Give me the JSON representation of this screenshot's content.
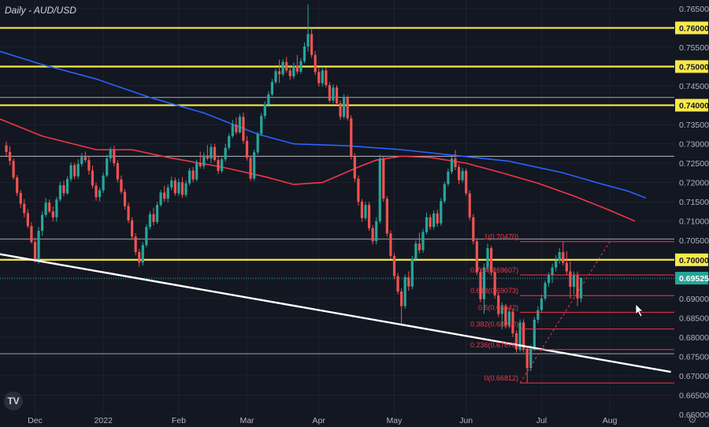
{
  "chart_data": {
    "type": "candlestick",
    "title": "Daily - AUD/USD",
    "logo_text": "TV",
    "colors": {
      "background": "#131722",
      "up": "#26a69a",
      "down": "#ef5350",
      "level": "#f7e94a",
      "ma_long": "#2962ff",
      "ma_short": "#f23645",
      "fib": "#f23645",
      "trendline": "#ffffff",
      "price_badge": "#26a69a"
    },
    "y_range": [
      0.66,
      0.766
    ],
    "y_ticks": [
      "0.76500",
      "0.76000",
      "0.75500",
      "0.75000",
      "0.74500",
      "0.74000",
      "0.73500",
      "0.73000",
      "0.72500",
      "0.72000",
      "0.71500",
      "0.71000",
      "0.70500",
      "0.70000",
      "0.69500",
      "0.69000",
      "0.68500",
      "0.68000",
      "0.67500",
      "0.67000",
      "0.66500",
      "0.66000"
    ],
    "x_labels": [
      {
        "label": "Dec",
        "bar": 8
      },
      {
        "label": "2022",
        "bar": 27
      },
      {
        "label": "Feb",
        "bar": 48
      },
      {
        "label": "Mar",
        "bar": 67
      },
      {
        "label": "Apr",
        "bar": 87
      },
      {
        "label": "May",
        "bar": 108
      },
      {
        "label": "Jun",
        "bar": 128
      },
      {
        "label": "Jul",
        "bar": 149
      },
      {
        "label": "Aug",
        "bar": 168
      }
    ],
    "yellow_levels": [
      {
        "price": 0.76,
        "label": "0.76000"
      },
      {
        "price": 0.75,
        "label": "0.75000"
      },
      {
        "price": 0.74,
        "label": "0.74000"
      },
      {
        "price": 0.7,
        "label": "0.70000"
      }
    ],
    "white_levels": [
      0.742,
      0.7268,
      0.7054,
      0.6757
    ],
    "current_price": {
      "price": 0.69525,
      "label": "0.69525"
    },
    "fib_levels": [
      {
        "ratio": "1",
        "price": 0.7047,
        "label": "1(0.70470)"
      },
      {
        "ratio": "0.764",
        "price": 0.69607,
        "label": "0.764(0.69607)"
      },
      {
        "ratio": "0.618",
        "price": 0.69073,
        "label": "0.618(0.69073)"
      },
      {
        "ratio": "0.5",
        "price": 0.68642,
        "label": "0.5(0.68642)"
      },
      {
        "ratio": "0.382",
        "price": 0.6821,
        "label": "0.382(0.68210)"
      },
      {
        "ratio": "0.236",
        "price": 0.67676,
        "label": "0.236(0.67676)"
      },
      {
        "ratio": "0",
        "price": 0.66812,
        "label": "0(0.66812)"
      }
    ],
    "trendline": {
      "from": {
        "bar": -2,
        "price": 0.7015
      },
      "to": {
        "bar": 185,
        "price": 0.671
      }
    },
    "ma_200": [
      [
        -2,
        0.754
      ],
      [
        10,
        0.7505
      ],
      [
        25,
        0.7468
      ],
      [
        40,
        0.742
      ],
      [
        55,
        0.738
      ],
      [
        70,
        0.7325
      ],
      [
        80,
        0.73
      ],
      [
        95,
        0.7295
      ],
      [
        110,
        0.7285
      ],
      [
        125,
        0.727
      ],
      [
        140,
        0.7255
      ],
      [
        155,
        0.7225
      ],
      [
        165,
        0.7198
      ],
      [
        173,
        0.7178
      ],
      [
        178,
        0.716
      ]
    ],
    "ma_100": [
      [
        -2,
        0.7365
      ],
      [
        10,
        0.732
      ],
      [
        25,
        0.7285
      ],
      [
        35,
        0.7285
      ],
      [
        45,
        0.7265
      ],
      [
        60,
        0.724
      ],
      [
        72,
        0.7215
      ],
      [
        80,
        0.7195
      ],
      [
        88,
        0.72
      ],
      [
        98,
        0.724
      ],
      [
        103,
        0.7258
      ],
      [
        110,
        0.7268
      ],
      [
        118,
        0.7265
      ],
      [
        128,
        0.725
      ],
      [
        138,
        0.7225
      ],
      [
        148,
        0.7198
      ],
      [
        158,
        0.7165
      ],
      [
        168,
        0.7128
      ],
      [
        175,
        0.71
      ]
    ],
    "ohlc": [
      [
        0.7296,
        0.7306,
        0.7269,
        0.7279
      ],
      [
        0.7279,
        0.7294,
        0.7244,
        0.7256
      ],
      [
        0.7256,
        0.7262,
        0.7207,
        0.7213
      ],
      [
        0.7213,
        0.7219,
        0.7165,
        0.7173
      ],
      [
        0.7173,
        0.718,
        0.7134,
        0.7145
      ],
      [
        0.7145,
        0.7157,
        0.711,
        0.7121
      ],
      [
        0.7121,
        0.7131,
        0.7082,
        0.7087
      ],
      [
        0.7087,
        0.7097,
        0.7042,
        0.7046
      ],
      [
        0.7046,
        0.7057,
        0.6993,
        0.7001
      ],
      [
        0.7001,
        0.7085,
        0.6989,
        0.7075
      ],
      [
        0.7075,
        0.7125,
        0.7062,
        0.7116
      ],
      [
        0.7116,
        0.716,
        0.711,
        0.7148
      ],
      [
        0.7148,
        0.7156,
        0.712,
        0.7125
      ],
      [
        0.7125,
        0.7138,
        0.7099,
        0.711
      ],
      [
        0.711,
        0.7163,
        0.7098,
        0.7156
      ],
      [
        0.7156,
        0.7202,
        0.715,
        0.7193
      ],
      [
        0.7193,
        0.7205,
        0.7164,
        0.7172
      ],
      [
        0.7172,
        0.7216,
        0.7168,
        0.7209
      ],
      [
        0.7209,
        0.7252,
        0.7202,
        0.7245
      ],
      [
        0.7245,
        0.7251,
        0.7208,
        0.7216
      ],
      [
        0.7216,
        0.726,
        0.7209,
        0.7248
      ],
      [
        0.7248,
        0.7276,
        0.7241,
        0.7266
      ],
      [
        0.7266,
        0.728,
        0.7252,
        0.7258
      ],
      [
        0.7258,
        0.7267,
        0.722,
        0.7231
      ],
      [
        0.7231,
        0.7244,
        0.7185,
        0.7192
      ],
      [
        0.7192,
        0.72,
        0.7153,
        0.7162
      ],
      [
        0.7162,
        0.7187,
        0.7151,
        0.718
      ],
      [
        0.718,
        0.7226,
        0.7173,
        0.7218
      ],
      [
        0.7218,
        0.7272,
        0.7213,
        0.7262
      ],
      [
        0.7262,
        0.7292,
        0.7253,
        0.7284
      ],
      [
        0.7284,
        0.7295,
        0.7242,
        0.725
      ],
      [
        0.725,
        0.7258,
        0.72,
        0.7208
      ],
      [
        0.7208,
        0.7218,
        0.717,
        0.7176
      ],
      [
        0.7176,
        0.7184,
        0.713,
        0.7139
      ],
      [
        0.7139,
        0.7148,
        0.7095,
        0.7102
      ],
      [
        0.7102,
        0.711,
        0.7052,
        0.706
      ],
      [
        0.706,
        0.7069,
        0.7012,
        0.702
      ],
      [
        0.702,
        0.7028,
        0.6982,
        0.6993
      ],
      [
        0.6993,
        0.7046,
        0.6985,
        0.7038
      ],
      [
        0.7038,
        0.7092,
        0.7032,
        0.7085
      ],
      [
        0.7085,
        0.7126,
        0.7078,
        0.7118
      ],
      [
        0.7118,
        0.7135,
        0.7089,
        0.7098
      ],
      [
        0.7098,
        0.715,
        0.7093,
        0.7142
      ],
      [
        0.7142,
        0.7181,
        0.7137,
        0.7174
      ],
      [
        0.7174,
        0.7192,
        0.715,
        0.7158
      ],
      [
        0.7158,
        0.7195,
        0.7148,
        0.7187
      ],
      [
        0.7187,
        0.7215,
        0.718,
        0.7205
      ],
      [
        0.7205,
        0.7213,
        0.7166,
        0.7172
      ],
      [
        0.7172,
        0.721,
        0.7165,
        0.7201
      ],
      [
        0.7201,
        0.7214,
        0.716,
        0.7168
      ],
      [
        0.7168,
        0.7206,
        0.7162,
        0.7198
      ],
      [
        0.7198,
        0.7238,
        0.7192,
        0.7231
      ],
      [
        0.7231,
        0.724,
        0.72,
        0.7208
      ],
      [
        0.7208,
        0.7259,
        0.7203,
        0.725
      ],
      [
        0.725,
        0.728,
        0.7236,
        0.7242
      ],
      [
        0.7242,
        0.7278,
        0.7235,
        0.727
      ],
      [
        0.727,
        0.7297,
        0.7257,
        0.7262
      ],
      [
        0.7262,
        0.7301,
        0.725,
        0.7292
      ],
      [
        0.7292,
        0.73,
        0.7254,
        0.7258
      ],
      [
        0.7258,
        0.7266,
        0.7222,
        0.723
      ],
      [
        0.723,
        0.7266,
        0.7224,
        0.726
      ],
      [
        0.726,
        0.73,
        0.7253,
        0.729
      ],
      [
        0.729,
        0.7327,
        0.7284,
        0.732
      ],
      [
        0.732,
        0.7362,
        0.7315,
        0.735
      ],
      [
        0.735,
        0.7368,
        0.7324,
        0.733
      ],
      [
        0.733,
        0.7377,
        0.7326,
        0.737
      ],
      [
        0.737,
        0.7381,
        0.73,
        0.7308
      ],
      [
        0.7308,
        0.732,
        0.7257,
        0.7264
      ],
      [
        0.7264,
        0.727,
        0.7204,
        0.721
      ],
      [
        0.721,
        0.7285,
        0.7204,
        0.7278
      ],
      [
        0.7278,
        0.7332,
        0.7272,
        0.7326
      ],
      [
        0.7326,
        0.738,
        0.732,
        0.7372
      ],
      [
        0.7372,
        0.741,
        0.7365,
        0.7402
      ],
      [
        0.7402,
        0.7436,
        0.7395,
        0.7428
      ],
      [
        0.7428,
        0.7468,
        0.7423,
        0.746
      ],
      [
        0.746,
        0.7495,
        0.7455,
        0.7488
      ],
      [
        0.7488,
        0.7518,
        0.7458,
        0.748
      ],
      [
        0.748,
        0.7519,
        0.7474,
        0.7512
      ],
      [
        0.7512,
        0.7525,
        0.7484,
        0.749
      ],
      [
        0.749,
        0.7504,
        0.7465,
        0.7475
      ],
      [
        0.7475,
        0.751,
        0.7468,
        0.7502
      ],
      [
        0.7502,
        0.753,
        0.748,
        0.7487
      ],
      [
        0.7487,
        0.7522,
        0.7481,
        0.7514
      ],
      [
        0.7514,
        0.7562,
        0.7509,
        0.7552
      ],
      [
        0.7552,
        0.7661,
        0.7539,
        0.7584
      ],
      [
        0.7584,
        0.76,
        0.7522,
        0.753
      ],
      [
        0.753,
        0.754,
        0.7478,
        0.7486
      ],
      [
        0.7486,
        0.7496,
        0.7448,
        0.7457
      ],
      [
        0.7457,
        0.75,
        0.7448,
        0.749
      ],
      [
        0.749,
        0.7498,
        0.7446,
        0.7452
      ],
      [
        0.7452,
        0.746,
        0.7406,
        0.7412
      ],
      [
        0.7412,
        0.7454,
        0.7405,
        0.7446
      ],
      [
        0.7446,
        0.7452,
        0.74,
        0.7405
      ],
      [
        0.7405,
        0.7412,
        0.7362,
        0.737
      ],
      [
        0.737,
        0.7429,
        0.7364,
        0.742
      ],
      [
        0.742,
        0.7426,
        0.736,
        0.7366
      ],
      [
        0.7366,
        0.7374,
        0.726,
        0.7268
      ],
      [
        0.7268,
        0.7276,
        0.7201,
        0.721
      ],
      [
        0.721,
        0.7218,
        0.714,
        0.715
      ],
      [
        0.715,
        0.7157,
        0.7098,
        0.7108
      ],
      [
        0.7108,
        0.715,
        0.7102,
        0.7142
      ],
      [
        0.7142,
        0.715,
        0.7075,
        0.7082
      ],
      [
        0.7082,
        0.709,
        0.704,
        0.7048
      ],
      [
        0.7048,
        0.711,
        0.704,
        0.71
      ],
      [
        0.71,
        0.7272,
        0.7094,
        0.7262
      ],
      [
        0.7262,
        0.7268,
        0.715,
        0.7158
      ],
      [
        0.7158,
        0.7165,
        0.706,
        0.7068
      ],
      [
        0.7068,
        0.7076,
        0.7002,
        0.701
      ],
      [
        0.701,
        0.7018,
        0.695,
        0.6958
      ],
      [
        0.6958,
        0.6966,
        0.691,
        0.6918
      ],
      [
        0.6918,
        0.6926,
        0.683,
        0.688
      ],
      [
        0.688,
        0.6962,
        0.6873,
        0.6955
      ],
      [
        0.6955,
        0.697,
        0.692,
        0.6931
      ],
      [
        0.6931,
        0.701,
        0.6924,
        0.7002
      ],
      [
        0.7002,
        0.705,
        0.6995,
        0.7042
      ],
      [
        0.7042,
        0.707,
        0.7016,
        0.7025
      ],
      [
        0.7025,
        0.708,
        0.7018,
        0.7072
      ],
      [
        0.7072,
        0.7122,
        0.7066,
        0.711
      ],
      [
        0.711,
        0.7118,
        0.7078,
        0.7085
      ],
      [
        0.7085,
        0.7128,
        0.7078,
        0.712
      ],
      [
        0.712,
        0.713,
        0.7086,
        0.7094
      ],
      [
        0.7094,
        0.716,
        0.7088,
        0.7152
      ],
      [
        0.7152,
        0.7202,
        0.7146,
        0.7196
      ],
      [
        0.7196,
        0.7236,
        0.719,
        0.7228
      ],
      [
        0.7228,
        0.7268,
        0.7222,
        0.7262
      ],
      [
        0.7262,
        0.7284,
        0.7232,
        0.724
      ],
      [
        0.724,
        0.7248,
        0.7196,
        0.7206
      ],
      [
        0.7206,
        0.7238,
        0.72,
        0.723
      ],
      [
        0.723,
        0.7236,
        0.7166,
        0.7172
      ],
      [
        0.7172,
        0.718,
        0.7102,
        0.711
      ],
      [
        0.711,
        0.7118,
        0.704,
        0.7048
      ],
      [
        0.7048,
        0.7056,
        0.696,
        0.6968
      ],
      [
        0.6968,
        0.6976,
        0.689,
        0.6898
      ],
      [
        0.6898,
        0.699,
        0.686,
        0.698
      ],
      [
        0.698,
        0.7042,
        0.6972,
        0.703
      ],
      [
        0.703,
        0.7036,
        0.6958,
        0.6968
      ],
      [
        0.6968,
        0.698,
        0.69,
        0.6908
      ],
      [
        0.6908,
        0.6916,
        0.6852,
        0.686
      ],
      [
        0.686,
        0.689,
        0.682,
        0.688
      ],
      [
        0.688,
        0.6886,
        0.6822,
        0.683
      ],
      [
        0.683,
        0.6875,
        0.6822,
        0.6866
      ],
      [
        0.6866,
        0.6874,
        0.68,
        0.681
      ],
      [
        0.681,
        0.6818,
        0.676,
        0.6768
      ],
      [
        0.6768,
        0.6846,
        0.6762,
        0.6838
      ],
      [
        0.6838,
        0.6846,
        0.676,
        0.677
      ],
      [
        0.677,
        0.6776,
        0.6681,
        0.672
      ],
      [
        0.672,
        0.678,
        0.6712,
        0.677
      ],
      [
        0.677,
        0.6852,
        0.6764,
        0.6845
      ],
      [
        0.6845,
        0.688,
        0.6836,
        0.687
      ],
      [
        0.687,
        0.691,
        0.6862,
        0.69
      ],
      [
        0.69,
        0.6946,
        0.6894,
        0.694
      ],
      [
        0.694,
        0.6968,
        0.693,
        0.696
      ],
      [
        0.696,
        0.699,
        0.694,
        0.698
      ],
      [
        0.698,
        0.7012,
        0.697,
        0.6998
      ],
      [
        0.6998,
        0.703,
        0.699,
        0.702
      ],
      [
        0.702,
        0.7047,
        0.6985,
        0.6992
      ],
      [
        0.6992,
        0.7022,
        0.696,
        0.697
      ],
      [
        0.697,
        0.6996,
        0.69,
        0.693
      ],
      [
        0.693,
        0.697,
        0.691,
        0.6962
      ],
      [
        0.6962,
        0.697,
        0.688,
        0.69
      ],
      [
        0.69,
        0.6955,
        0.689,
        0.6953
      ]
    ]
  }
}
